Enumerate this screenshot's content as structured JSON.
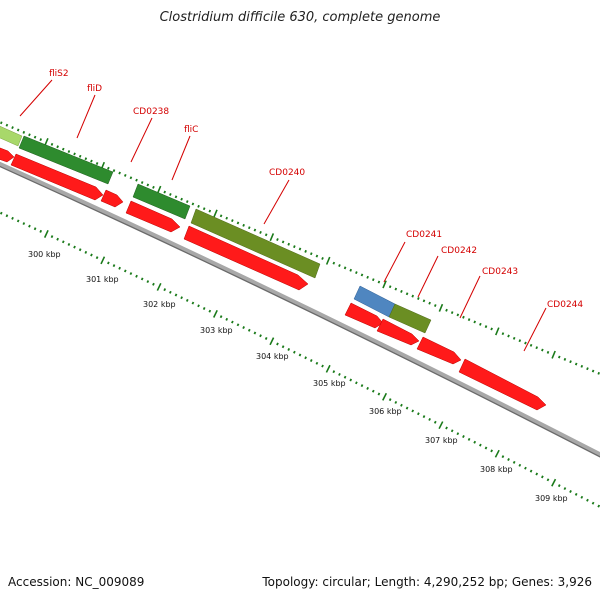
{
  "title": "Clostridium difficile 630, complete genome",
  "footer": {
    "accession": "Accession: NC_009089",
    "summary": "Topology: circular; Length: 4,290,252 bp; Genes: 3,926"
  },
  "colors": {
    "cds": "#ff1a1a",
    "gene_green": "#2e8b2e",
    "gene_olive": "#6b8e23",
    "gene_blue": "#4f86c0",
    "gene_lime": "#a8d86a",
    "gene_label": "#d40000",
    "backbone": "#888888",
    "ticks": "#1a7a1a"
  },
  "tick_labels": [
    "300 kbp",
    "301 kbp",
    "302 kbp",
    "303 kbp",
    "304 kbp",
    "305 kbp",
    "306 kbp",
    "307 kbp",
    "308 kbp",
    "309 kbp"
  ],
  "gene_labels": [
    "fliS2",
    "fliD",
    "CD0238",
    "fliC",
    "CD0240",
    "CD0241",
    "CD0242",
    "CD0243",
    "CD0244"
  ]
}
